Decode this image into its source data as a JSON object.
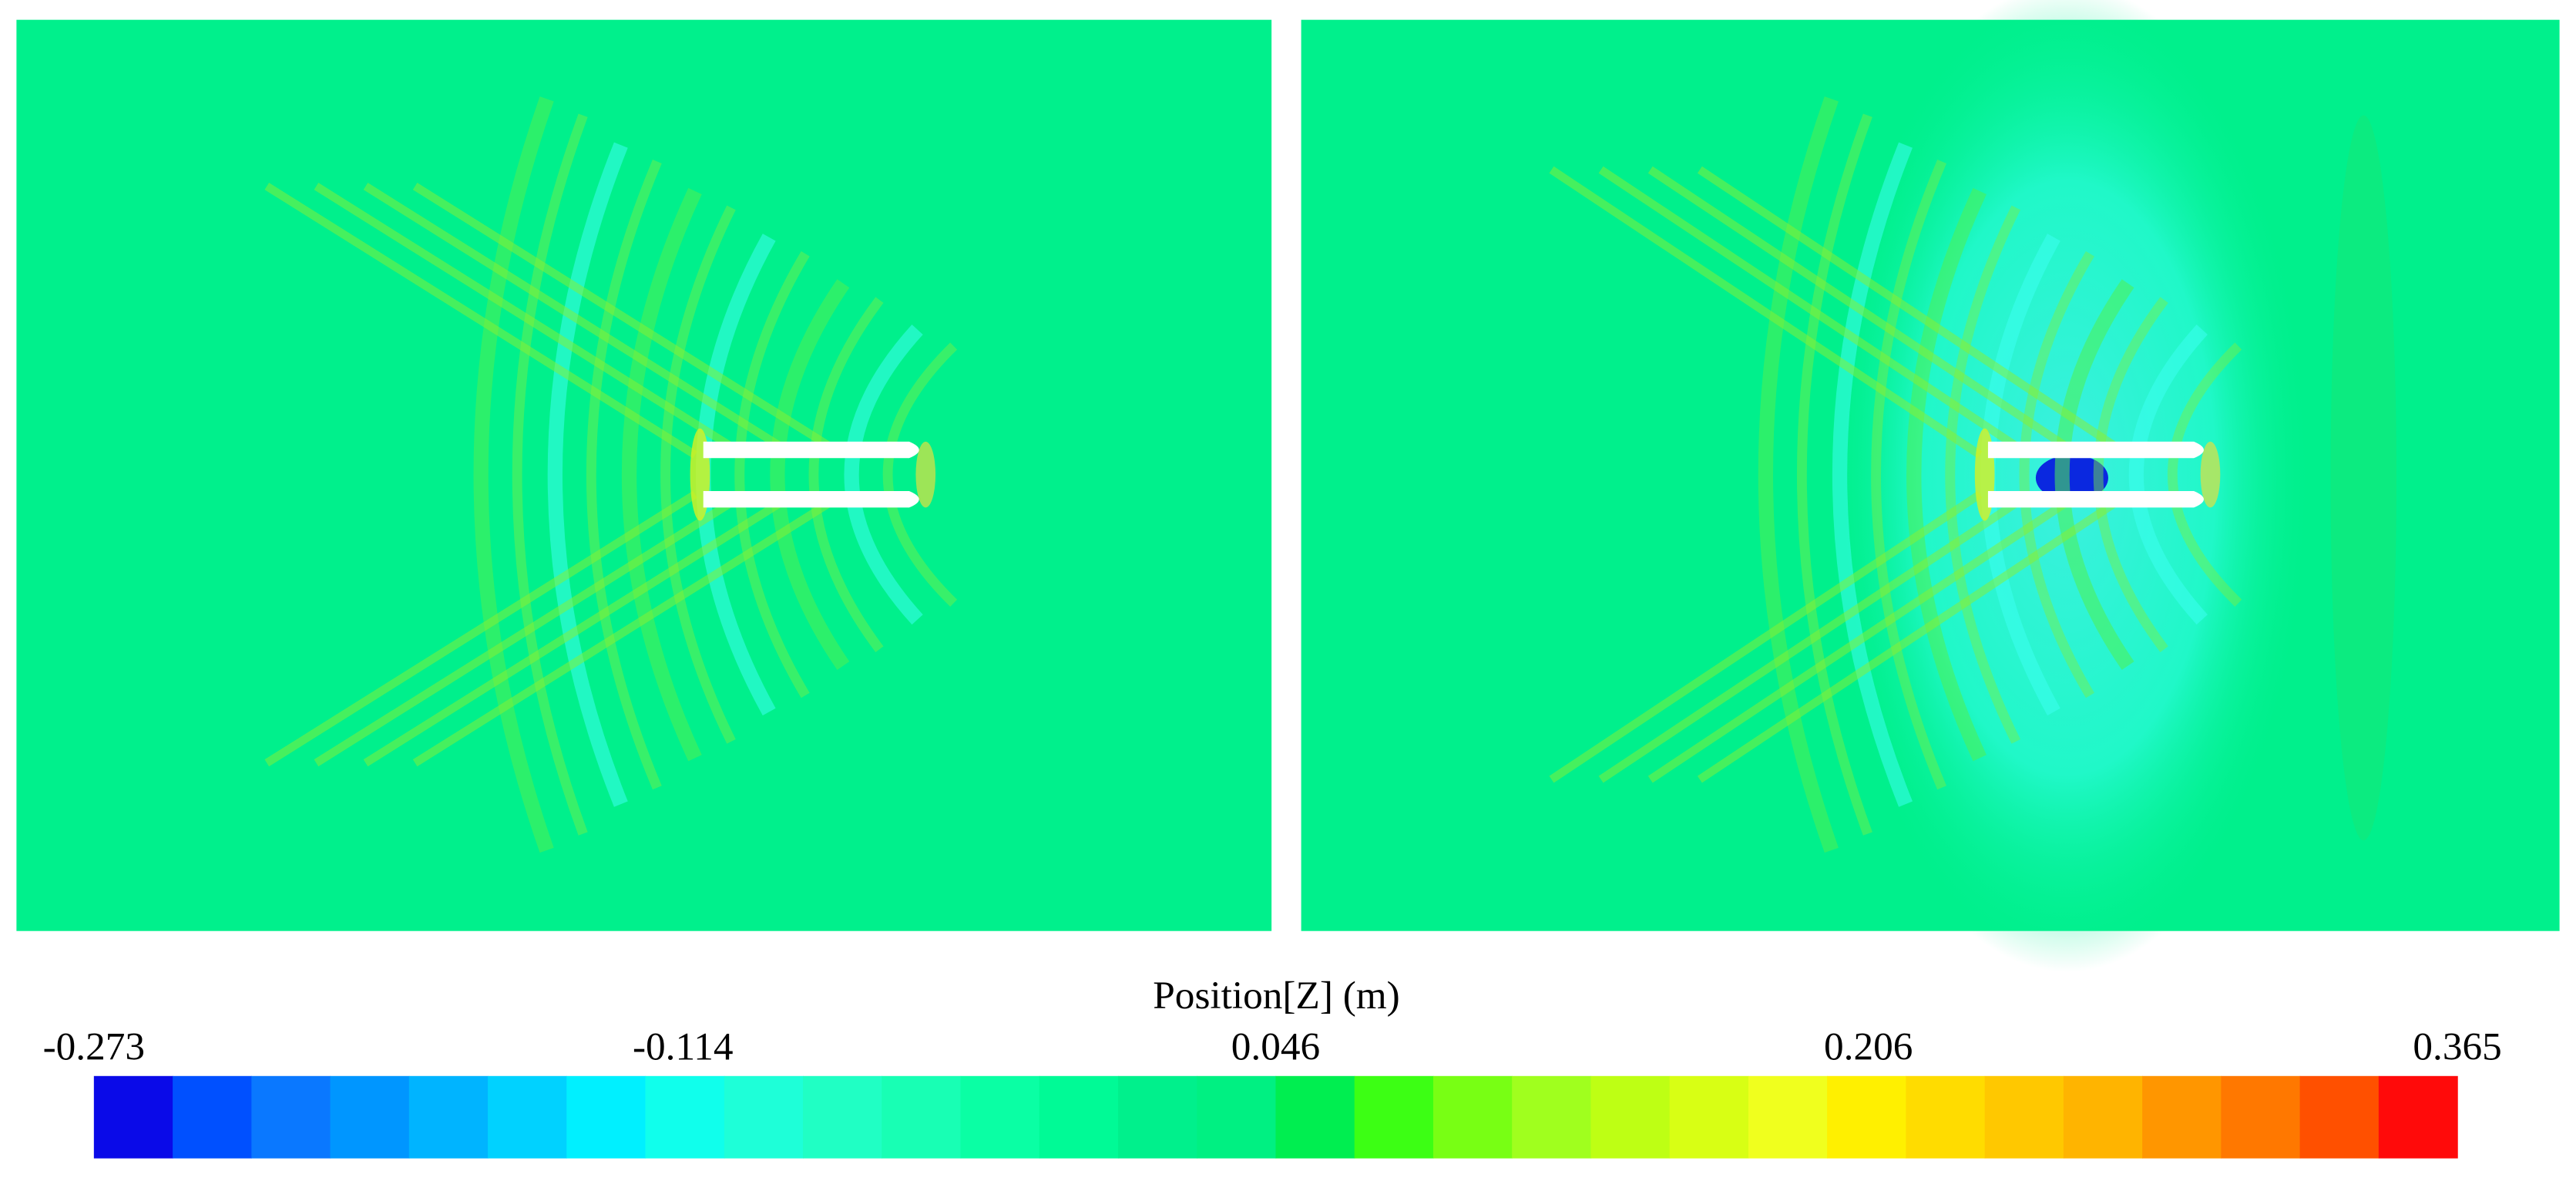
{
  "colorbar": {
    "title": "Position[Z] (m)",
    "lim": [
      -0.273,
      0.365
    ],
    "ticks": [
      -0.273,
      -0.114,
      0.046,
      0.206,
      0.365
    ],
    "colors": [
      "#0a0ae8",
      "#0050ff",
      "#0a78ff",
      "#0096ff",
      "#00b4ff",
      "#00d2ff",
      "#00f0ff",
      "#10ffec",
      "#1effd8",
      "#20ffc4",
      "#18ffb4",
      "#0affa4",
      "#00fa96",
      "#00f08c",
      "#00f082",
      "#00ee50",
      "#3cff14",
      "#78ff14",
      "#a0ff1e",
      "#beff14",
      "#d8ff14",
      "#f0ff1e",
      "#fff000",
      "#ffdc00",
      "#ffc800",
      "#ffb400",
      "#ff9600",
      "#ff7800",
      "#ff5000",
      "#ff0a0a"
    ]
  }
}
